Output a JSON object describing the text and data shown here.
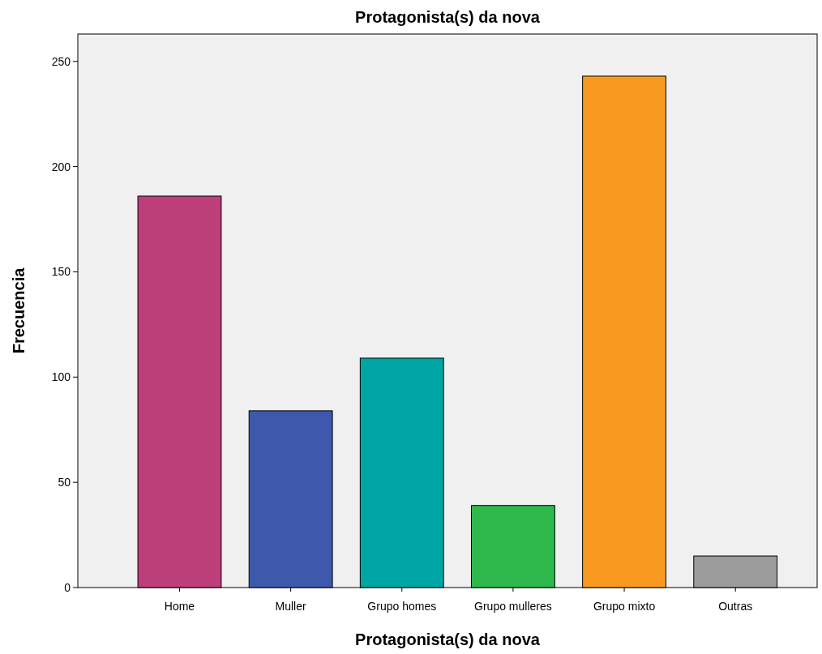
{
  "chart_data": {
    "type": "bar",
    "title": "Protagonista(s) da nova",
    "xlabel": "Protagonista(s) da nova",
    "ylabel": "Frecuencia",
    "categories": [
      "Home",
      "Muller",
      "Grupo homes",
      "Grupo mulleres",
      "Grupo mixto",
      "Outras"
    ],
    "values": [
      186,
      84,
      109,
      39,
      243,
      15
    ],
    "colors": [
      "#bc3f7a",
      "#3e58ac",
      "#00a6a3",
      "#2fb84b",
      "#f79a1f",
      "#9b9b9b"
    ],
    "ylim": [
      0,
      263
    ],
    "yticks": [
      0,
      50,
      100,
      150,
      200,
      250
    ],
    "grid": false
  }
}
